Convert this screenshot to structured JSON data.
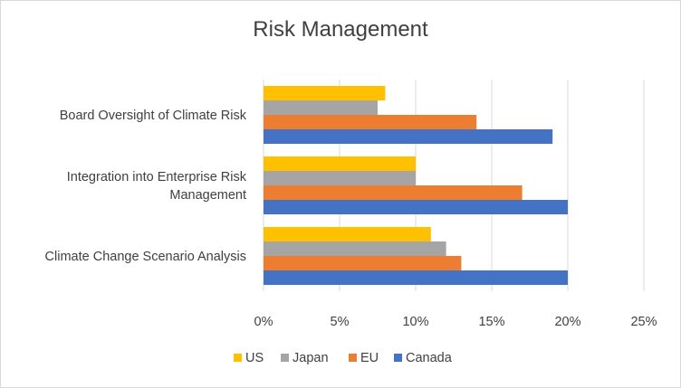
{
  "chart_data": {
    "type": "bar",
    "orientation": "horizontal",
    "title": "Risk Management",
    "categories": [
      "Board Oversight of Climate Risk",
      [
        "Integration into Enterprise Risk",
        "Management"
      ],
      "Climate Change Scenario Analysis"
    ],
    "series": [
      {
        "name": "US",
        "color": "#ffc000",
        "values": [
          8,
          10,
          11
        ]
      },
      {
        "name": "Japan",
        "color": "#a5a5a5",
        "values": [
          7.5,
          10,
          12
        ]
      },
      {
        "name": "EU",
        "color": "#ed7d31",
        "values": [
          14,
          17,
          13
        ]
      },
      {
        "name": "Canada",
        "color": "#4472c4",
        "values": [
          19,
          20,
          20
        ]
      }
    ],
    "x_ticks": [
      "0%",
      "5%",
      "10%",
      "15%",
      "20%",
      "25%"
    ],
    "xlim": [
      0,
      25
    ],
    "x_unit": "%",
    "grid": true,
    "legend_position": "bottom"
  }
}
